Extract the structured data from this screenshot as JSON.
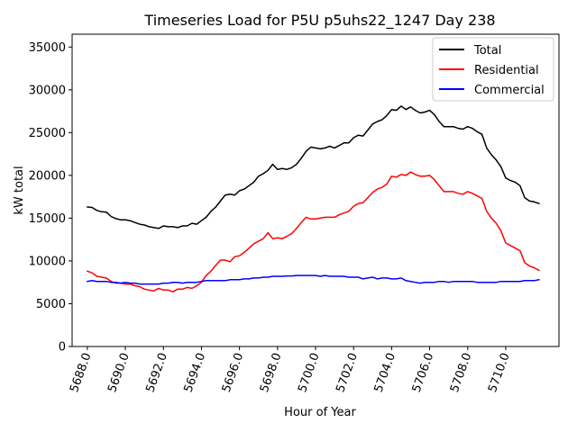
{
  "chart_data": {
    "type": "line",
    "title": "Timeseries Load for P5U p5uhs22_1247  Day 238",
    "xlabel": "Hour of Year",
    "ylabel": "kW total",
    "xlim": [
      5687.2,
      5712.8
    ],
    "ylim": [
      0,
      36500
    ],
    "xticks": [
      5688,
      5690,
      5692,
      5694,
      5696,
      5698,
      5700,
      5702,
      5704,
      5706,
      5708,
      5710
    ],
    "xtick_labels": [
      "5688.0",
      "5690.0",
      "5692.0",
      "5694.0",
      "5696.0",
      "5698.0",
      "5700.0",
      "5702.0",
      "5704.0",
      "5706.0",
      "5708.0",
      "5710.0"
    ],
    "yticks": [
      0,
      5000,
      10000,
      15000,
      20000,
      25000,
      30000,
      35000
    ],
    "ytick_labels": [
      "0",
      "5000",
      "10000",
      "15000",
      "20000",
      "25000",
      "30000",
      "35000"
    ],
    "legend_position": "top-right",
    "grid": false,
    "x": [
      5688.0,
      5688.25,
      5688.5,
      5688.75,
      5689.0,
      5689.25,
      5689.5,
      5689.75,
      5690.0,
      5690.25,
      5690.5,
      5690.75,
      5691.0,
      5691.25,
      5691.5,
      5691.75,
      5692.0,
      5692.25,
      5692.5,
      5692.75,
      5693.0,
      5693.25,
      5693.5,
      5693.75,
      5694.0,
      5694.25,
      5694.5,
      5694.75,
      5695.0,
      5695.25,
      5695.5,
      5695.75,
      5696.0,
      5696.25,
      5696.5,
      5696.75,
      5697.0,
      5697.25,
      5697.5,
      5697.75,
      5698.0,
      5698.25,
      5698.5,
      5698.75,
      5699.0,
      5699.25,
      5699.5,
      5699.75,
      5700.0,
      5700.25,
      5700.5,
      5700.75,
      5701.0,
      5701.25,
      5701.5,
      5701.75,
      5702.0,
      5702.25,
      5702.5,
      5702.75,
      5703.0,
      5703.25,
      5703.5,
      5703.75,
      5704.0,
      5704.25,
      5704.5,
      5704.75,
      5705.0,
      5705.25,
      5705.5,
      5705.75,
      5706.0,
      5706.25,
      5706.5,
      5706.75,
      5707.0,
      5707.25,
      5707.5,
      5707.75,
      5708.0,
      5708.25,
      5708.5,
      5708.75,
      5709.0,
      5709.25,
      5709.5,
      5709.75,
      5710.0,
      5710.25,
      5710.5,
      5710.75,
      5711.0,
      5711.25,
      5711.5,
      5711.75
    ],
    "series": [
      {
        "name": "Total",
        "color": "#000000",
        "values": [
          16300,
          16250,
          15900,
          15750,
          15700,
          15200,
          14950,
          14800,
          14800,
          14700,
          14500,
          14300,
          14200,
          14000,
          13900,
          13800,
          14100,
          14000,
          14000,
          13900,
          14100,
          14100,
          14400,
          14300,
          14700,
          15100,
          15800,
          16300,
          17000,
          17700,
          17800,
          17700,
          18200,
          18400,
          18800,
          19200,
          19900,
          20200,
          20600,
          21300,
          20700,
          20800,
          20700,
          20900,
          21300,
          22000,
          22800,
          23300,
          23200,
          23100,
          23200,
          23400,
          23200,
          23500,
          23800,
          23800,
          24400,
          24700,
          24600,
          25300,
          26000,
          26300,
          26500,
          27000,
          27700,
          27600,
          28100,
          27700,
          28000,
          27600,
          27300,
          27400,
          27600,
          27100,
          26300,
          25700,
          25700,
          25700,
          25500,
          25400,
          25700,
          25500,
          25100,
          24800,
          23200,
          22400,
          21800,
          21000,
          19700,
          19400,
          19200,
          18800,
          17400,
          17000,
          16900,
          16700
        ]
      },
      {
        "name": "Residential",
        "color": "#ff0000",
        "values": [
          8800,
          8600,
          8200,
          8100,
          8000,
          7600,
          7400,
          7400,
          7300,
          7300,
          7100,
          7000,
          6700,
          6600,
          6500,
          6800,
          6600,
          6600,
          6400,
          6700,
          6700,
          6900,
          6800,
          7100,
          7500,
          8300,
          8800,
          9500,
          10100,
          10100,
          9900,
          10500,
          10600,
          11000,
          11500,
          12000,
          12300,
          12600,
          13300,
          12600,
          12700,
          12600,
          12900,
          13200,
          13800,
          14500,
          15100,
          14900,
          14900,
          15000,
          15100,
          15100,
          15100,
          15400,
          15600,
          15800,
          16400,
          16700,
          16800,
          17400,
          18000,
          18400,
          18600,
          19000,
          19900,
          19800,
          20100,
          20000,
          20400,
          20100,
          19900,
          19900,
          20000,
          19500,
          18800,
          18100,
          18100,
          18100,
          17900,
          17800,
          18100,
          17900,
          17600,
          17300,
          15800,
          15000,
          14400,
          13500,
          12100,
          11800,
          11500,
          11200,
          9800,
          9400,
          9200,
          8900
        ]
      },
      {
        "name": "Commercial",
        "color": "#0000ff",
        "values": [
          7600,
          7700,
          7600,
          7600,
          7600,
          7500,
          7500,
          7400,
          7500,
          7400,
          7400,
          7300,
          7300,
          7300,
          7300,
          7300,
          7400,
          7400,
          7500,
          7500,
          7400,
          7500,
          7500,
          7500,
          7600,
          7700,
          7700,
          7700,
          7700,
          7700,
          7800,
          7800,
          7800,
          7900,
          7900,
          8000,
          8000,
          8100,
          8100,
          8200,
          8200,
          8200,
          8250,
          8250,
          8300,
          8300,
          8300,
          8300,
          8300,
          8200,
          8300,
          8200,
          8200,
          8200,
          8200,
          8100,
          8100,
          8100,
          7900,
          8000,
          8100,
          7900,
          8000,
          8000,
          7900,
          7900,
          8000,
          7700,
          7600,
          7500,
          7400,
          7500,
          7500,
          7500,
          7600,
          7600,
          7500,
          7600,
          7600,
          7600,
          7600,
          7600,
          7500,
          7500,
          7500,
          7500,
          7500,
          7600,
          7600,
          7600,
          7600,
          7600,
          7700,
          7700,
          7700,
          7800
        ]
      }
    ]
  }
}
